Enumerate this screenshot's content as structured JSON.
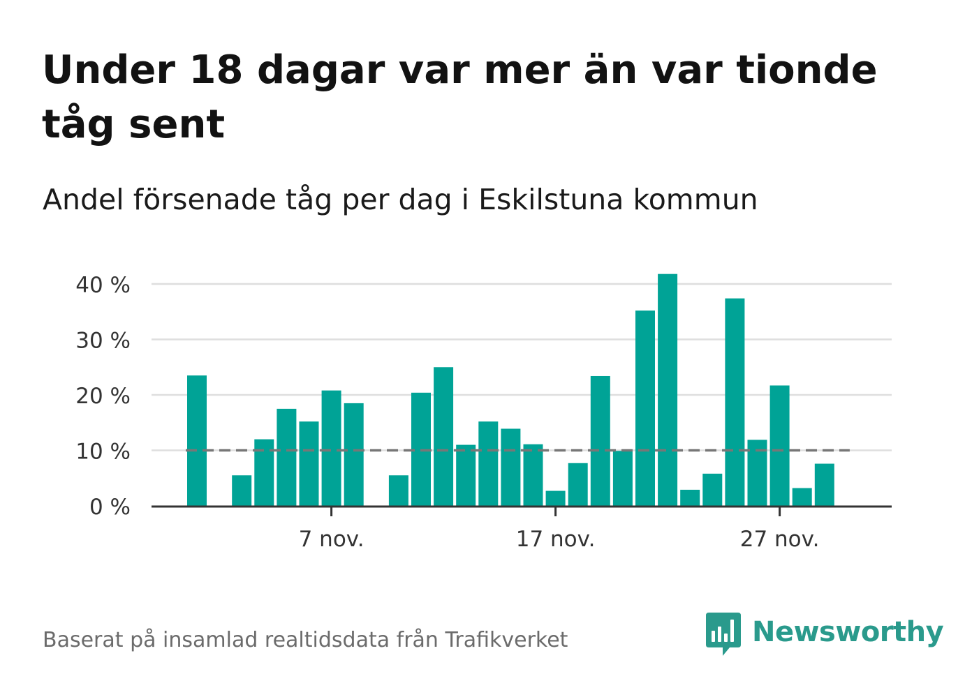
{
  "title": "Under 18 dagar var mer än var tionde tåg sent",
  "subtitle": "Andel försenade tåg per dag i Eskilstuna kommun",
  "footer": "Baserat på insamlad realtidsdata från Trafikverket",
  "brand": {
    "name": "Newsworthy",
    "icon": "newsworthy-logo-icon"
  },
  "colors": {
    "bar": "#00a396",
    "grid": "#dedede",
    "axis": "#333333",
    "reference_line": "#777777",
    "brand": "#2a9a8c"
  },
  "chart_data": {
    "type": "bar",
    "title": "Under 18 dagar var mer än var tionde tåg sent",
    "subtitle": "Andel försenade tåg per dag i Eskilstuna kommun",
    "x": [
      "2021-11-01",
      "2021-11-02",
      "2021-11-03",
      "2021-11-04",
      "2021-11-05",
      "2021-11-06",
      "2021-11-07",
      "2021-11-08",
      "2021-11-09",
      "2021-11-10",
      "2021-11-11",
      "2021-11-12",
      "2021-11-13",
      "2021-11-14",
      "2021-11-15",
      "2021-11-16",
      "2021-11-17",
      "2021-11-18",
      "2021-11-19",
      "2021-11-20",
      "2021-11-21",
      "2021-11-22",
      "2021-11-23",
      "2021-11-24",
      "2021-11-25",
      "2021-11-26",
      "2021-11-27",
      "2021-11-28",
      "2021-11-29",
      "2021-11-30"
    ],
    "values": [
      23.5,
      null,
      5.5,
      12,
      17.5,
      15.2,
      20.8,
      18.5,
      null,
      5.5,
      20.4,
      25,
      11,
      15.2,
      13.9,
      11.1,
      2.7,
      7.7,
      23.4,
      9.9,
      35.2,
      41.8,
      2.9,
      5.8,
      37.4,
      11.9,
      21.7,
      3.2,
      7.6,
      null
    ],
    "reference_line": 10,
    "xticks": [
      {
        "date": "2021-11-07",
        "label": "7 nov."
      },
      {
        "date": "2021-11-17",
        "label": "17 nov."
      },
      {
        "date": "2021-11-27",
        "label": "27 nov."
      }
    ],
    "yticks": [
      {
        "value": 0,
        "label": "0 %"
      },
      {
        "value": 10,
        "label": "10 %"
      },
      {
        "value": 20,
        "label": "20 %"
      },
      {
        "value": 30,
        "label": "30 %"
      },
      {
        "value": 40,
        "label": "40 %"
      }
    ],
    "ylim": [
      0,
      40
    ],
    "ylabel": "",
    "xlabel": "",
    "grid": true,
    "legend": "none"
  }
}
